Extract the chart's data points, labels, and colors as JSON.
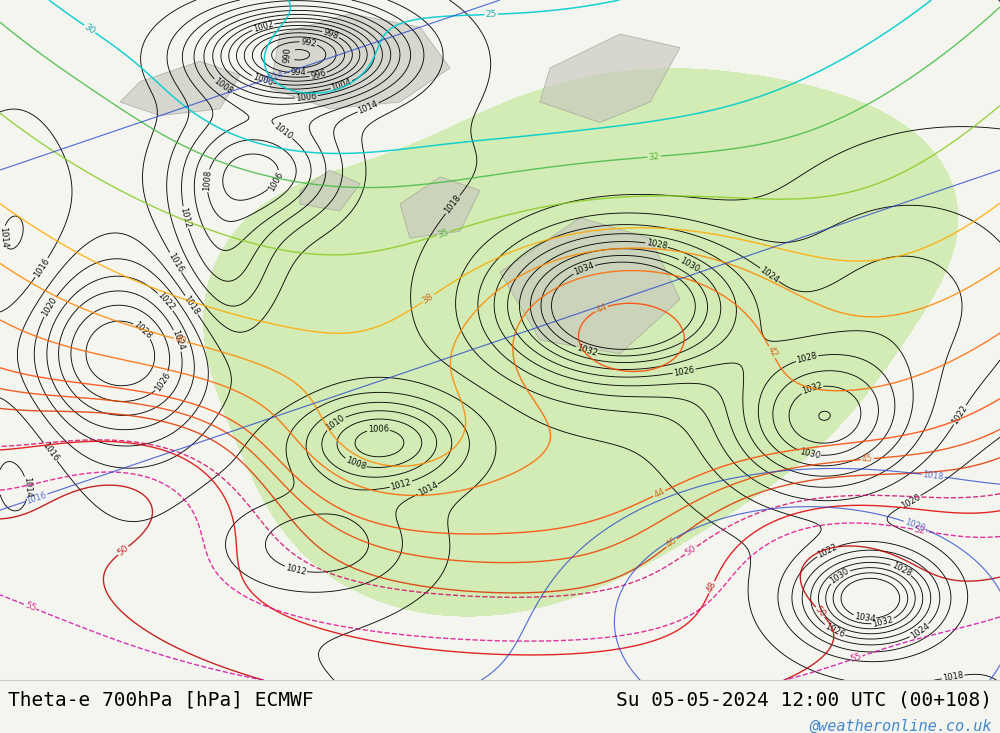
{
  "title_left": "Theta-e 700hPa [hPa] ECMWF",
  "title_right": "Su 05-05-2024 12:00 UTC (00+108)",
  "watermark": "@weatheronline.co.uk",
  "bg_color": "#f5f5f0",
  "map_bg": "#f5f5f0",
  "font_family": "monospace",
  "title_fontsize": 14,
  "watermark_fontsize": 11,
  "watermark_color": "#4488cc",
  "bottom_bar_color": "#ffffff",
  "bottom_bar_height": 0.072,
  "green_fill_color": "#c8e8a0",
  "gray_land_color": "#c8c8c0",
  "gray_edge_color": "#999990"
}
